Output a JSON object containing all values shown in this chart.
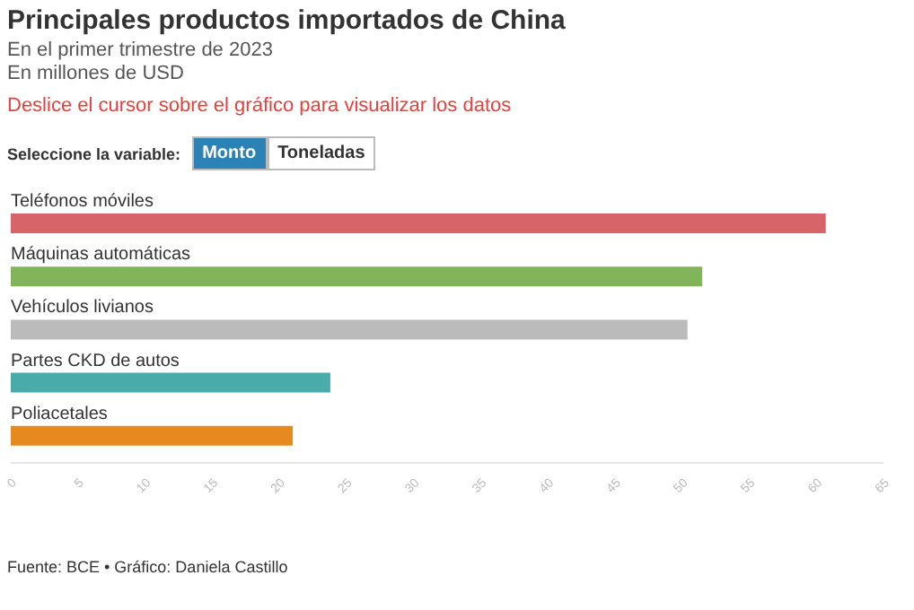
{
  "chart_data": {
    "type": "bar",
    "orientation": "horizontal",
    "title": "Principales productos importados de China",
    "subtitle": "En el primer trimestre de 2023\nEn millones de USD",
    "categories": [
      "Teléfonos móviles",
      "Máquinas automáticas",
      "Vehículos livianos",
      "Partes CKD de autos",
      "Poliacetales"
    ],
    "values": [
      60.7,
      51.5,
      50.4,
      23.8,
      21.0
    ],
    "colors": [
      "#d66468",
      "#82b55a",
      "#bbbbbb",
      "#4aabab",
      "#e68a20"
    ],
    "xlim": [
      0,
      65
    ],
    "xticks": [
      0,
      5,
      10,
      15,
      20,
      25,
      30,
      35,
      40,
      45,
      50,
      55,
      60,
      65
    ],
    "annotations": [
      "Deslice el cursor sobre el gráfico para visualizar los datos",
      "Seleccione la variable:",
      "Monto",
      "Toneladas",
      "Fuente: BCE • Gráfico: Daniela Castillo"
    ]
  }
}
